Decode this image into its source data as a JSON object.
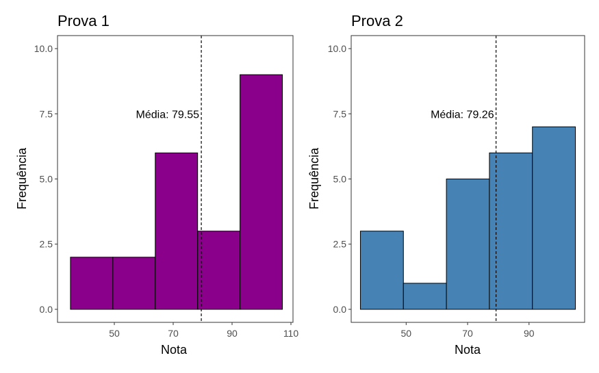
{
  "chart_data": [
    {
      "type": "bar",
      "title": "Prova 1",
      "xlabel": "Nota",
      "ylabel": "Frequência",
      "xlim": [
        30.7,
        110.7
      ],
      "ylim": [
        -0.5,
        10.5
      ],
      "xticks": [
        50,
        70,
        90,
        110
      ],
      "xtick_labels": [
        "50",
        "70",
        "90",
        "110"
      ],
      "yticks": [
        0,
        2.5,
        5,
        7.5,
        10
      ],
      "ytick_labels": [
        "0.0",
        "2.5",
        "5.0",
        "7.5",
        "10.0"
      ],
      "bin_edges": [
        35.1,
        49.5,
        63.9,
        78.3,
        92.7,
        107.1
      ],
      "values": [
        2,
        2,
        6,
        3,
        9
      ],
      "fill": "#8B008B",
      "mean": 79.55,
      "mean_label": "Média: 79.55",
      "mean_label_y": 7.5,
      "grid": false,
      "legend": "none"
    },
    {
      "type": "bar",
      "title": "Prova 2",
      "xlabel": "Nota",
      "ylabel": "Frequência",
      "xlim": [
        32.1,
        108.1
      ],
      "ylim": [
        -0.5,
        10.5
      ],
      "xticks": [
        50,
        70,
        90
      ],
      "xtick_labels": [
        "50",
        "70",
        "90"
      ],
      "yticks": [
        0,
        2.5,
        5,
        7.5,
        10
      ],
      "ytick_labels": [
        "0.0",
        "2.5",
        "5.0",
        "7.5",
        "10.0"
      ],
      "bin_edges": [
        35.1,
        49.1,
        63.1,
        77.1,
        91.1,
        105.1
      ],
      "values": [
        3,
        1,
        5,
        6,
        7
      ],
      "fill": "#4682B4",
      "mean": 79.26,
      "mean_label": "Média: 79.26",
      "mean_label_y": 7.5,
      "grid": false,
      "legend": "none"
    }
  ]
}
